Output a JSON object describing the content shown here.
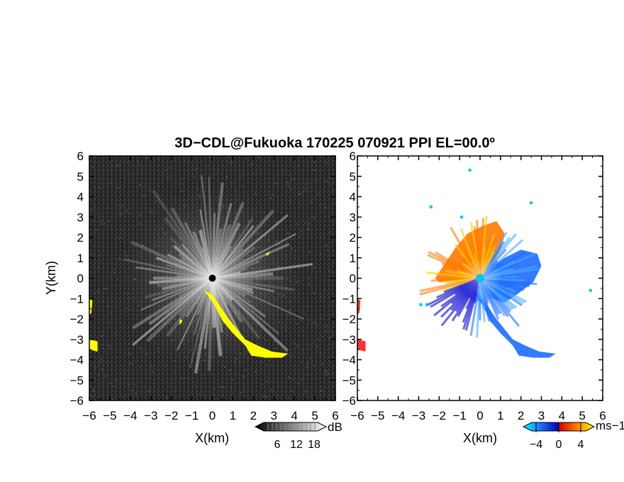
{
  "title": "3D−CDL@Fukuoka 170225 070921 PPI EL=00.0º",
  "colors": {
    "echo_background": "#2b2b2b",
    "echo_mask": "#ffff00",
    "velocity_negative": "#1e6cff",
    "velocity_positive": "#ff7a00",
    "velocity_far_positive": "#ff1a1a",
    "velocity_far_negative": "#0000cc",
    "velocity_near_zero": "#00c8e6",
    "velocity_high": "#ffcc00"
  },
  "chart_data": [
    {
      "type": "heatmap",
      "name": "reflectivity",
      "xlabel": "X(km)",
      "ylabel": "Y(km)",
      "xlim": [
        -6,
        6
      ],
      "ylim": [
        -6,
        6
      ],
      "xticks": [
        "−6",
        "−5",
        "−4",
        "−3",
        "−2",
        "−1",
        "0",
        "1",
        "2",
        "3",
        "4",
        "5",
        "6"
      ],
      "yticks": [
        "−6",
        "−5",
        "−4",
        "−3",
        "−2",
        "−1",
        "0",
        "1",
        "2",
        "3",
        "4",
        "5",
        "6"
      ],
      "colorbar": {
        "unit": "dB",
        "ticks": [
          "6",
          "12",
          "18"
        ],
        "range": [
          0,
          21
        ]
      },
      "mask_regions_km": [
        [
          [
            -0.4,
            -0.6
          ],
          [
            0.1,
            -1.3
          ],
          [
            0.5,
            -2.1
          ],
          [
            1.0,
            -2.7
          ],
          [
            1.6,
            -3.3
          ],
          [
            1.9,
            -3.8
          ],
          [
            2.6,
            -3.9
          ],
          [
            3.4,
            -3.9
          ],
          [
            3.7,
            -3.7
          ],
          [
            2.9,
            -3.6
          ],
          [
            2.2,
            -3.3
          ],
          [
            1.6,
            -3.0
          ],
          [
            1.2,
            -2.5
          ],
          [
            0.8,
            -2.0
          ],
          [
            0.4,
            -1.4
          ],
          [
            0.0,
            -0.8
          ]
        ],
        [
          [
            -6.0,
            -1.0
          ],
          [
            -5.85,
            -1.1
          ],
          [
            -5.9,
            -1.7
          ],
          [
            -6.0,
            -1.8
          ]
        ],
        [
          [
            -6.0,
            -3.0
          ],
          [
            -5.6,
            -3.1
          ],
          [
            -5.6,
            -3.6
          ],
          [
            -6.0,
            -3.5
          ]
        ],
        [
          [
            2.6,
            1.2
          ],
          [
            2.8,
            1.3
          ],
          [
            2.7,
            1.1
          ]
        ],
        [
          [
            -1.6,
            -2.0
          ],
          [
            -1.45,
            -2.1
          ],
          [
            -1.6,
            -2.3
          ]
        ]
      ]
    },
    {
      "type": "heatmap",
      "name": "doppler_velocity",
      "xlabel": "X(km)",
      "xlim": [
        -6,
        6
      ],
      "ylim": [
        -6,
        6
      ],
      "xticks": [
        "−6",
        "−5",
        "−4",
        "−3",
        "−2",
        "−1",
        "0",
        "1",
        "2",
        "3",
        "4",
        "5",
        "6"
      ],
      "colorbar": {
        "unit": "ms−1",
        "ticks": [
          "−4",
          "0",
          "4"
        ],
        "range": [
          -5,
          5
        ]
      },
      "regions_km": [
        {
          "sign": "positive",
          "points": [
            [
              0,
              0
            ],
            [
              -2.0,
              -0.2
            ],
            [
              -2.2,
              0.0
            ],
            [
              -1.8,
              0.6
            ],
            [
              -1.2,
              1.5
            ],
            [
              -0.6,
              2.2
            ],
            [
              0.2,
              2.6
            ],
            [
              0.8,
              2.8
            ],
            [
              1.2,
              2.2
            ],
            [
              1.0,
              1.4
            ],
            [
              0.6,
              0.6
            ]
          ]
        },
        {
          "sign": "negative",
          "points": [
            [
              0,
              0
            ],
            [
              0.6,
              0.6
            ],
            [
              1.2,
              1.0
            ],
            [
              2.0,
              1.4
            ],
            [
              2.8,
              1.2
            ],
            [
              3.0,
              0.6
            ],
            [
              2.6,
              -0.2
            ],
            [
              1.8,
              -0.8
            ],
            [
              1.2,
              -1.2
            ],
            [
              0.6,
              -1.0
            ],
            [
              0.2,
              -0.6
            ]
          ]
        },
        {
          "sign": "negative",
          "points": [
            [
              -0.4,
              -0.6
            ],
            [
              0.1,
              -1.3
            ],
            [
              0.5,
              -2.1
            ],
            [
              1.0,
              -2.7
            ],
            [
              1.6,
              -3.3
            ],
            [
              1.9,
              -3.8
            ],
            [
              2.6,
              -3.9
            ],
            [
              3.4,
              -3.9
            ],
            [
              3.7,
              -3.7
            ],
            [
              2.9,
              -3.6
            ],
            [
              2.2,
              -3.3
            ],
            [
              1.6,
              -3.0
            ],
            [
              1.2,
              -2.5
            ],
            [
              0.8,
              -2.0
            ],
            [
              0.4,
              -1.4
            ],
            [
              0.0,
              -0.8
            ]
          ]
        },
        {
          "sign": "far_positive",
          "points": [
            [
              -6.0,
              -1.0
            ],
            [
              -5.85,
              -1.1
            ],
            [
              -5.9,
              -1.7
            ],
            [
              -6.0,
              -1.8
            ]
          ]
        },
        {
          "sign": "far_positive",
          "points": [
            [
              -6.0,
              -3.0
            ],
            [
              -5.6,
              -3.1
            ],
            [
              -5.6,
              -3.6
            ],
            [
              -6.0,
              -3.5
            ]
          ]
        }
      ]
    }
  ]
}
